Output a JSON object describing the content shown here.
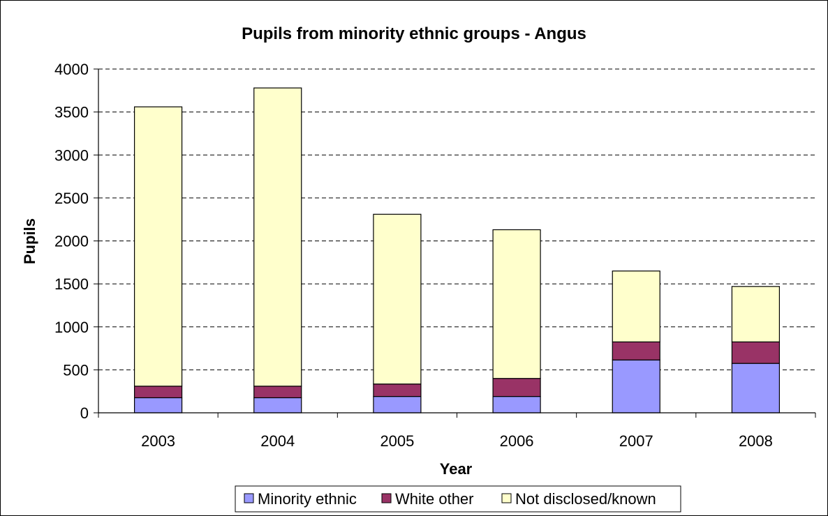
{
  "chart_data": {
    "type": "bar",
    "stacked": true,
    "title": "Pupils from minority ethnic groups - Angus",
    "xlabel": "Year",
    "ylabel": "Pupils",
    "categories": [
      "2003",
      "2004",
      "2005",
      "2006",
      "2007",
      "2008"
    ],
    "ylim": [
      0,
      4000
    ],
    "yticks": [
      "0",
      "500",
      "1000",
      "1500",
      "2000",
      "2500",
      "3000",
      "3500",
      "4000"
    ],
    "grid": "horizontal dashed",
    "legend_position": "bottom",
    "series": [
      {
        "name": "Minority ethnic",
        "values": [
          175,
          175,
          190,
          190,
          615,
          575
        ],
        "color": "#9999ff"
      },
      {
        "name": "White other",
        "values": [
          135,
          135,
          145,
          210,
          210,
          250
        ],
        "color": "#993366"
      },
      {
        "name": "Not disclosed/known",
        "values": [
          3250,
          3470,
          1975,
          1730,
          825,
          645
        ],
        "color": "#ffffcc"
      }
    ]
  }
}
